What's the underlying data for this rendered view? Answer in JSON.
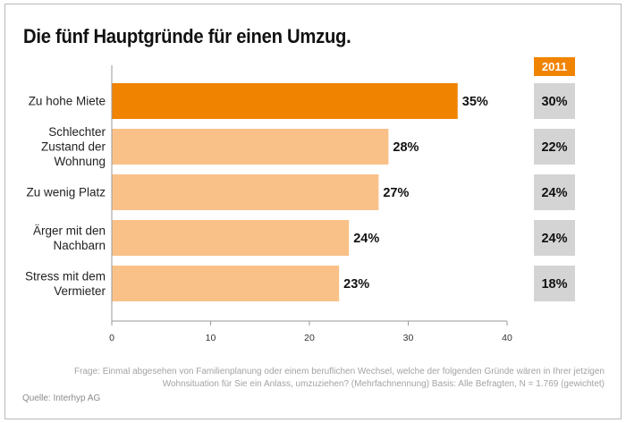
{
  "title": "Die fünf Hauptgründe für einen Umzug.",
  "colors": {
    "highlight_bar": "#f08300",
    "bar": "#f9c188",
    "comparison_box": "#d4d4d4",
    "comparison_header": "#f08300",
    "axis": "#9a9a9a"
  },
  "chart_data": {
    "type": "bar",
    "orientation": "horizontal",
    "categories": [
      [
        "Zu hohe Miete"
      ],
      [
        "Schlechter",
        "Zustand der",
        "Wohnung"
      ],
      [
        "Zu wenig Platz"
      ],
      [
        "Ärger mit den",
        "Nachbarn"
      ],
      [
        "Stress mit dem",
        "Vermieter"
      ]
    ],
    "values": [
      35,
      28,
      27,
      24,
      23
    ],
    "value_labels": [
      "35%",
      "28%",
      "27%",
      "24%",
      "23%"
    ],
    "highlighted_index": 0,
    "xlim": [
      0,
      40
    ],
    "xticks": [
      0,
      10,
      20,
      30,
      40
    ],
    "xlabel": "",
    "ylabel": "",
    "grid": false,
    "comparison": {
      "header": "2011",
      "values": [
        "30%",
        "22%",
        "24%",
        "24%",
        "18%"
      ]
    }
  },
  "footnote_lines": [
    "Frage: Einmal abgesehen von Familienplanung oder einem beruflichen Wechsel, welche der folgenden Gründe wären in Ihrer jetzigen",
    "Wohnsituation für Sie ein Anlass, umzuziehen? (Mehrfachnennung) Basis: Alle Befragten, N = 1.769 (gewichtet)"
  ],
  "source": "Quelle: Interhyp AG"
}
